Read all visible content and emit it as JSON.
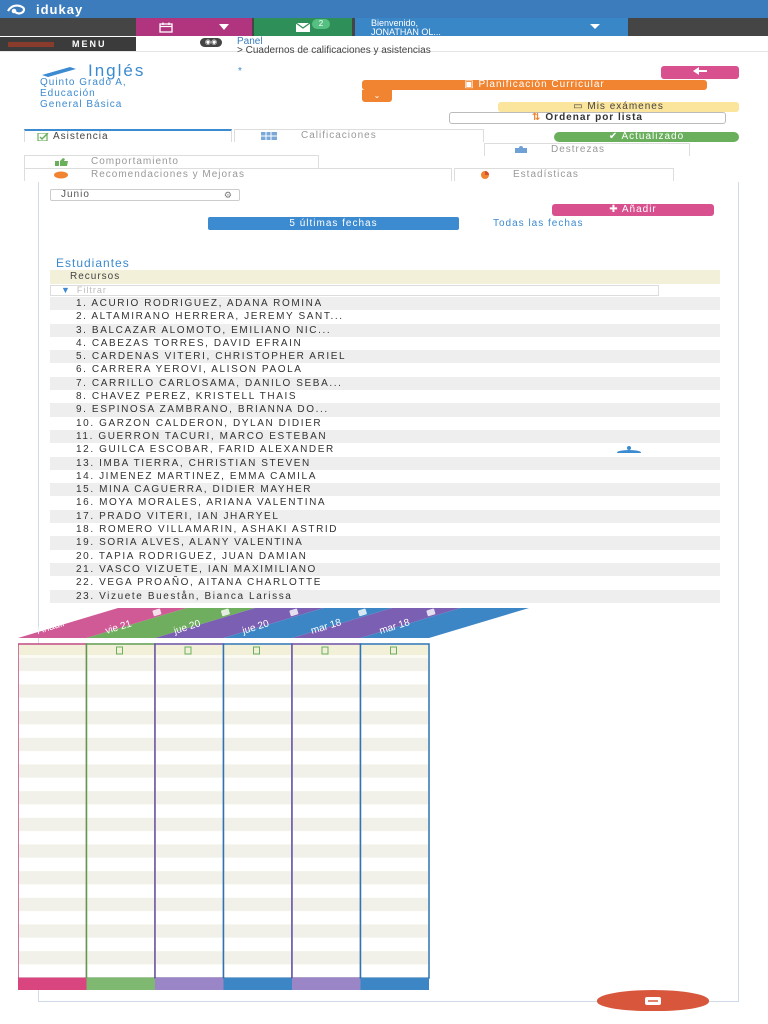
{
  "app": {
    "logo_text": "idukay",
    "mail_count": "2",
    "user_greeting": "Bienvenido,",
    "user_name": "JONATHAN OL..."
  },
  "menu": {
    "label": "MENU",
    "breadcrumb_panel": "Panel",
    "breadcrumb_current": "> Cuadernos de calificaciones y asistencias"
  },
  "course": {
    "subject": "Inglés",
    "star": "*",
    "line1": "Quinto Grado A,",
    "line2": "Educación",
    "line3": "General Básica"
  },
  "actions": {
    "planificacion": "Planificación Curricular",
    "mis_examenes": "Mis exámenes",
    "ordenar": "Ordenar por lista",
    "actualizado": "Actualizado",
    "anadir": "Añadir",
    "ultimas_fechas": "5 últimas fechas",
    "todas_fechas": "Todas las fechas"
  },
  "tabs": {
    "asistencia": "Asistencia",
    "calificaciones": "Calificaciones",
    "destrezas": "Destrezas",
    "comportamiento": "Comportamiento",
    "recomendaciones": "Recomendaciones y Mejoras",
    "estadisticas": "Estadísticas"
  },
  "month_select": {
    "value": "Junio"
  },
  "students_title": "Estudiantes",
  "resources_label": "Recursos",
  "filter_placeholder": "Filtrar",
  "students": [
    "1. ACURIO RODRIGUEZ, ADANA ROMINA",
    "2. ALTAMIRANO HERRERA, JEREMY SANT...",
    "3. BALCAZAR ALOMOTO, EMILIANO NIC...",
    "4. CABEZAS TORRES, DAVID EFRAIN",
    "5. CARDENAS VITERI, CHRISTOPHER ARIEL",
    "6. CARRERA YEROVI, ALISON PAOLA",
    "7. CARRILLO CARLOSAMA, DANILO SEBA...",
    "8. CHAVEZ PEREZ, KRISTELL THAIS",
    "9. ESPINOSA ZAMBRANO, BRIANNA DO...",
    "10. GARZON CALDERON, DYLAN DIDIER",
    "11. GUERRON TACURI, MARCO ESTEBAN",
    "12. GUILCA ESCOBAR, FARID ALEXANDER",
    "13. IMBA TIERRA, CHRISTIAN STEVEN",
    "14. JIMENEZ MARTINEZ, EMMA CAMILA",
    "15. MINA CAGUERRA, DIDIER MAYHER",
    "16. MOYA MORALES, ARIANA VALENTINA",
    "17. PRADO VITERI, IAN JHARYEL",
    "18. ROMERO VILLAMARIN, ASHAKI ASTRID",
    "19. SORIA ALVES, ALANY VALENTINA",
    "20. TAPIA RODRIGUEZ, JUAN DAMIAN",
    "21. VASCO VIZUETE, IAN MAXIMILIANO",
    "22. VEGA PROAÑO, AITANA CHARLOTTE",
    "23. Vizuete Buestån, Bianca Larissa"
  ],
  "date_columns": [
    {
      "label": "Añadir",
      "color": "#d05a96",
      "border": "#c2497f",
      "bottom": "#d8457f"
    },
    {
      "label": "vie 21",
      "color": "#6fad5f",
      "border": "#5d9a4e",
      "bottom": "#7fb870"
    },
    {
      "label": "jue 20",
      "color": "#7b5fb3",
      "border": "#6a4fa3",
      "bottom": "#9a85c6"
    },
    {
      "label": "jue 20",
      "color": "#3c86c6",
      "border": "#2f74b2",
      "bottom": "#3c86c6"
    },
    {
      "label": "mar 18",
      "color": "#7b5fb3",
      "border": "#6a4fa3",
      "bottom": "#9a85c6"
    },
    {
      "label": "mar 18",
      "color": "#3c86c6",
      "border": "#2f74b2",
      "bottom": "#3c86c6"
    }
  ],
  "colors": {
    "primary": "#3c8ad0",
    "pink": "#d9508f",
    "orange": "#f08431",
    "green": "#6aaf5c",
    "yellow": "#fbe49c"
  }
}
